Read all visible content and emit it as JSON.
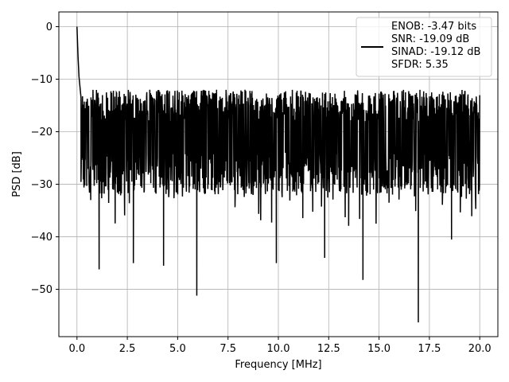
{
  "chart_data": {
    "type": "line",
    "title": "",
    "xlabel": "Frequency [MHz]",
    "ylabel": "PSD [dB]",
    "xlim": [
      -0.9,
      20.9
    ],
    "ylim": [
      -59,
      2.8
    ],
    "x_ticks": [
      0.0,
      2.5,
      5.0,
      7.5,
      10.0,
      12.5,
      15.0,
      17.5,
      20.0
    ],
    "x_tick_labels": [
      "0.0",
      "2.5",
      "5.0",
      "7.5",
      "10.0",
      "12.5",
      "15.0",
      "17.5",
      "20.0"
    ],
    "y_ticks": [
      0,
      -10,
      -20,
      -30,
      -40,
      -50
    ],
    "y_tick_labels": [
      "0",
      "−10",
      "−20",
      "−30",
      "−40",
      "−50"
    ],
    "grid": true,
    "legend_position": "top-right",
    "series_color": "#000000",
    "legend_entries": [
      "ENOB: -3.47 bits",
      "SNR: -19.09 dB",
      "SINAD: -19.12 dB",
      "SFDR: 5.35"
    ],
    "x_range": [
      0,
      20
    ],
    "noise_envelope": {
      "upper": -12,
      "lower": -32,
      "median": -22
    },
    "peaks": [
      {
        "x": 0.0,
        "y": 0.0
      },
      {
        "x": 0.05,
        "y": -5.5
      },
      {
        "x": 0.1,
        "y": -9.5
      },
      {
        "x": 0.15,
        "y": -11.5
      },
      {
        "x": 0.2,
        "y": -13.5
      }
    ],
    "notable_dips": [
      {
        "x": 1.1,
        "y": -46.2
      },
      {
        "x": 2.8,
        "y": -45.0
      },
      {
        "x": 4.3,
        "y": -45.5
      },
      {
        "x": 5.95,
        "y": -51.2
      },
      {
        "x": 9.9,
        "y": -45.0
      },
      {
        "x": 12.3,
        "y": -44.0
      },
      {
        "x": 14.2,
        "y": -48.2
      },
      {
        "x": 16.95,
        "y": -56.3
      },
      {
        "x": 18.6,
        "y": -40.5
      }
    ]
  }
}
